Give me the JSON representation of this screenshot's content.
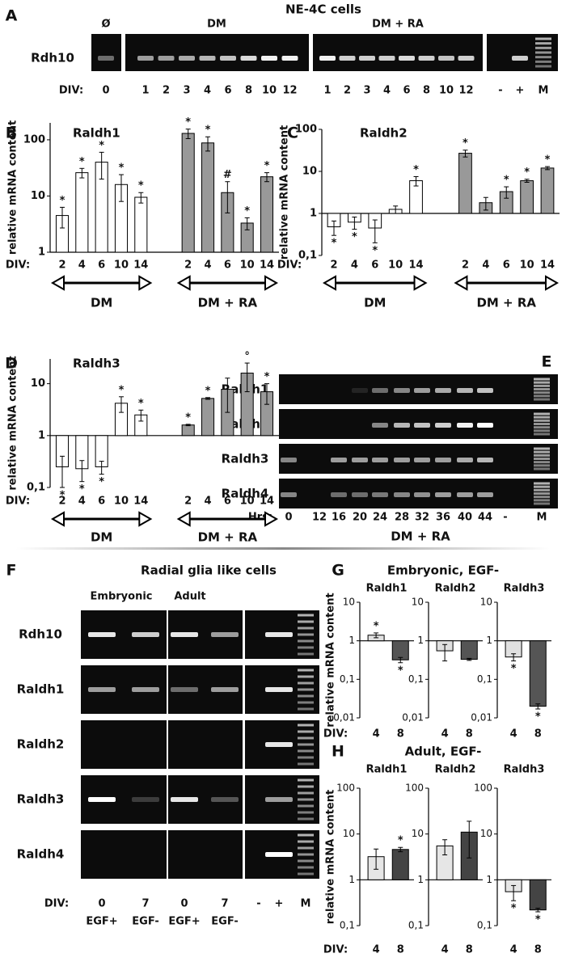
{
  "letters": {
    "A": "A",
    "B": "B",
    "C": "C",
    "D": "D",
    "E": "E",
    "F": "F",
    "G": "G",
    "H": "H"
  },
  "gels": {
    "A": {
      "title": "NE-4C cells",
      "headers": [
        "Ø",
        "DM",
        "DM + RA"
      ],
      "rows": [
        "Rdh10"
      ],
      "lane_label": "DIV:",
      "lanes": [
        "0",
        "1",
        "2",
        "3",
        "4",
        "6",
        "8",
        "10",
        "12",
        "1",
        "2",
        "3",
        "4",
        "6",
        "8",
        "10",
        "12",
        "-",
        "+",
        "M"
      ]
    },
    "E": {
      "rows": [
        "Raldh1",
        "Raldh2",
        "Raldh3",
        "Raldh4"
      ],
      "lane_label": "Hrs:",
      "lanes": [
        "0",
        "12",
        "16",
        "20",
        "24",
        "28",
        "32",
        "36",
        "40",
        "44",
        "-",
        "M"
      ],
      "condition": "DM + RA"
    },
    "F": {
      "title": "Radial glia like cells",
      "headers": [
        "Embryonic",
        "Adult"
      ],
      "rows": [
        "Rdh10",
        "Raldh1",
        "Raldh2",
        "Raldh3",
        "Raldh4"
      ],
      "lane_label": "DIV:",
      "lanes": [
        "0",
        "7",
        "0",
        "7",
        "-",
        "+",
        "M"
      ],
      "media": [
        "EGF+",
        "EGF-",
        "EGF+",
        "EGF-"
      ]
    }
  },
  "group_titles": {
    "G": "Embryonic, EGF-",
    "H": "Adult, EGF-"
  },
  "chart_data": [
    {
      "type": "bar",
      "title": "Raldh1",
      "ylabel": "relative mRNA content",
      "xlabel": "DIV:",
      "yscale": "log",
      "ylim": [
        1,
        200
      ],
      "yticks": [
        1,
        10,
        100
      ],
      "categories": [
        "2",
        "4",
        "6",
        "10",
        "14",
        "2",
        "4",
        "6",
        "10",
        "14"
      ],
      "series": [
        {
          "name": "DM",
          "color": "#ffffff",
          "values": [
            4.5,
            26,
            40,
            16,
            9.5,
            null,
            null,
            null,
            null,
            null
          ],
          "errors": [
            1.8,
            5,
            20,
            8,
            2,
            null,
            null,
            null,
            null,
            null
          ],
          "annotations": [
            "*",
            "*",
            "*",
            "*",
            "*",
            null,
            null,
            null,
            null,
            null
          ]
        },
        {
          "name": "DM + RA",
          "color": "#999999",
          "values": [
            null,
            null,
            null,
            null,
            null,
            130,
            88,
            11.5,
            3.3,
            22
          ],
          "errors": [
            null,
            null,
            null,
            null,
            null,
            25,
            25,
            6.5,
            0.8,
            4
          ],
          "annotations": [
            null,
            null,
            null,
            null,
            null,
            "*",
            "*",
            "#",
            "*",
            "*"
          ]
        }
      ]
    },
    {
      "type": "bar",
      "title": "Raldh2",
      "ylabel": "relative mRNA content",
      "xlabel": "DIV:",
      "yscale": "log",
      "ylim": [
        0.1,
        100
      ],
      "yticks": [
        {
          "value": 0.1,
          "label": "0,1"
        },
        1,
        10,
        100
      ],
      "categories": [
        "2",
        "4",
        "6",
        "10",
        "14",
        "2",
        "4",
        "6",
        "10",
        "14"
      ],
      "series": [
        {
          "name": "DM",
          "color": "#ffffff",
          "values": [
            0.48,
            0.62,
            0.45,
            1.25,
            6,
            null,
            null,
            null,
            null,
            null
          ],
          "errors": [
            0.18,
            0.2,
            0.25,
            0.25,
            1.5,
            null,
            null,
            null,
            null,
            null
          ],
          "annotations": [
            "*",
            "*",
            "*",
            null,
            "*",
            null,
            null,
            null,
            null,
            null
          ]
        },
        {
          "name": "DM + RA",
          "color": "#999999",
          "values": [
            null,
            null,
            null,
            null,
            null,
            27,
            1.8,
            3.3,
            6,
            12
          ],
          "errors": [
            null,
            null,
            null,
            null,
            null,
            5,
            0.6,
            1,
            0.5,
            1
          ],
          "annotations": [
            null,
            null,
            null,
            null,
            null,
            "*",
            null,
            "*",
            "*",
            "*"
          ]
        }
      ]
    },
    {
      "type": "bar",
      "title": "Raldh3",
      "ylabel": "relative mRNA content",
      "xlabel": "DIV:",
      "yscale": "log",
      "ylim": [
        0.1,
        30
      ],
      "yticks": [
        {
          "value": 0.1,
          "label": "0,1"
        },
        1,
        10
      ],
      "categories": [
        "2",
        "4",
        "6",
        "10",
        "14",
        "2",
        "4",
        "6",
        "10",
        "14"
      ],
      "series": [
        {
          "name": "DM",
          "color": "#ffffff",
          "values": [
            0.25,
            0.23,
            0.25,
            4.2,
            2.5,
            null,
            null,
            null,
            null,
            null
          ],
          "errors": [
            0.15,
            0.1,
            0.07,
            1.4,
            0.6,
            null,
            null,
            null,
            null,
            null
          ],
          "annotations": [
            "*",
            "*",
            "*",
            "*",
            "*",
            null,
            null,
            null,
            null,
            null
          ]
        },
        {
          "name": "DM + RA",
          "color": "#999999",
          "values": [
            null,
            null,
            null,
            null,
            null,
            1.6,
            5.2,
            7.8,
            16,
            7
          ],
          "errors": [
            null,
            null,
            null,
            null,
            null,
            0.05,
            0.2,
            5,
            9,
            3
          ],
          "annotations": [
            null,
            null,
            null,
            null,
            null,
            "*",
            "*",
            null,
            "°",
            "*"
          ]
        }
      ]
    },
    {
      "type": "bar",
      "title": "Raldh1",
      "ylabel": "relative mRNA content",
      "xlabel": "DIV:",
      "yscale": "log",
      "ylim": [
        0.01,
        10
      ],
      "yticks": [
        {
          "value": 0.01,
          "label": "0,01"
        },
        {
          "value": 0.1,
          "label": "0,1"
        },
        1,
        10
      ],
      "categories": [
        "4",
        "8"
      ],
      "values": [
        1.4,
        0.32
      ],
      "errors": [
        0.2,
        0.05
      ],
      "colors": [
        "#e0e0e0",
        "#555555"
      ],
      "annotations": [
        "*",
        "*"
      ]
    },
    {
      "type": "bar",
      "title": "Raldh2",
      "yscale": "log",
      "ylim": [
        0.01,
        10
      ],
      "yticks": [
        {
          "value": 0.01,
          "label": "0,01"
        },
        {
          "value": 0.1,
          "label": "0,1"
        },
        1,
        10
      ],
      "categories": [
        "4",
        "8"
      ],
      "values": [
        0.55,
        0.33
      ],
      "errors": [
        0.25,
        0.02
      ],
      "colors": [
        "#e0e0e0",
        "#555555"
      ]
    },
    {
      "type": "bar",
      "title": "Raldh3",
      "yscale": "log",
      "ylim": [
        0.01,
        10
      ],
      "yticks": [
        {
          "value": 0.01,
          "label": "0,01"
        },
        {
          "value": 0.1,
          "label": "0,1"
        },
        1,
        10
      ],
      "categories": [
        "4",
        "8"
      ],
      "values": [
        0.38,
        0.02
      ],
      "errors": [
        0.08,
        0.003
      ],
      "colors": [
        "#e0e0e0",
        "#555555"
      ],
      "annotations": [
        "*",
        "*"
      ]
    },
    {
      "type": "bar",
      "title": "Raldh1",
      "ylabel": "relative mRNA content",
      "xlabel": "DIV:",
      "yscale": "log",
      "ylim": [
        0.1,
        100
      ],
      "yticks": [
        {
          "value": 0.1,
          "label": "0,1"
        },
        1,
        10,
        100
      ],
      "categories": [
        "4",
        "8"
      ],
      "values": [
        3.2,
        4.6
      ],
      "errors": [
        1.5,
        0.5
      ],
      "colors": [
        "#e6e6e6",
        "#444444"
      ],
      "annotations": [
        null,
        "*"
      ]
    },
    {
      "type": "bar",
      "title": "Raldh2",
      "yscale": "log",
      "ylim": [
        0.1,
        100
      ],
      "yticks": [
        {
          "value": 0.1,
          "label": "0,1"
        },
        1,
        10,
        100
      ],
      "categories": [
        "4",
        "8"
      ],
      "values": [
        5.5,
        11
      ],
      "errors": [
        2,
        8
      ],
      "colors": [
        "#e6e6e6",
        "#444444"
      ]
    },
    {
      "type": "bar",
      "title": "Raldh3",
      "yscale": "log",
      "ylim": [
        0.1,
        100
      ],
      "yticks": [
        {
          "value": 0.1,
          "label": "0,1"
        },
        1,
        10,
        100
      ],
      "categories": [
        "4",
        "8"
      ],
      "values": [
        0.55,
        0.22
      ],
      "errors": [
        0.2,
        0.02
      ],
      "colors": [
        "#e6e6e6",
        "#444444"
      ],
      "annotations": [
        "*",
        "*"
      ]
    }
  ]
}
